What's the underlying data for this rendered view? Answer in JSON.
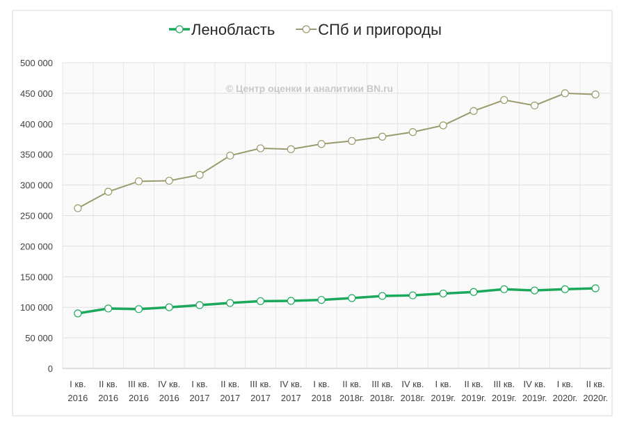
{
  "chart_data": {
    "type": "line",
    "annotation": "© Центр оценки и аналитики BN.ru",
    "categories": [
      "I кв.\n2016",
      "II кв.\n2016",
      "III кв.\n2016",
      "IV кв.\n2016",
      "I кв.\n2017",
      "II кв.\n2017",
      "III кв.\n2017",
      "IV кв.\n2017",
      "I кв.\n2018",
      "II кв.\n2018г.",
      "III кв.\n2018г.",
      "IV кв.\n2018г.",
      "I кв.\n2019г.",
      "II кв.\n2019г.",
      "III кв.\n2019г.",
      "IV кв.\n2019г.",
      "I кв.\n2020г.",
      "II кв.\n2020г."
    ],
    "series": [
      {
        "name": "Ленобласть",
        "color": "#1aa85a",
        "values": [
          90000,
          98000,
          97000,
          100000,
          103500,
          107000,
          110000,
          110500,
          112000,
          115000,
          118500,
          119500,
          122500,
          125000,
          129500,
          127500,
          129500,
          131000
        ]
      },
      {
        "name": "СПб и пригороды",
        "color": "#9a9a6c",
        "values": [
          262000,
          289000,
          306000,
          307000,
          316500,
          348000,
          360000,
          358500,
          367000,
          372000,
          379000,
          386500,
          397500,
          421000,
          439000,
          430000,
          450000,
          448000
        ]
      }
    ],
    "ylim": [
      0,
      500000
    ],
    "yticks": [
      0,
      {
        "value": 50000,
        "label": "50 000"
      },
      {
        "value": 100000,
        "label": "100 000"
      },
      {
        "value": 150000,
        "label": "150 000"
      },
      {
        "value": 200000,
        "label": "200 000"
      },
      {
        "value": 250000,
        "label": "250 000"
      },
      {
        "value": 300000,
        "label": "300 000"
      },
      {
        "value": 350000,
        "label": "350 000"
      },
      {
        "value": 400000,
        "label": "400 000"
      },
      {
        "value": 450000,
        "label": "450 000"
      },
      {
        "value": 500000,
        "label": "500 000"
      }
    ],
    "grid": true,
    "legend": "top"
  }
}
